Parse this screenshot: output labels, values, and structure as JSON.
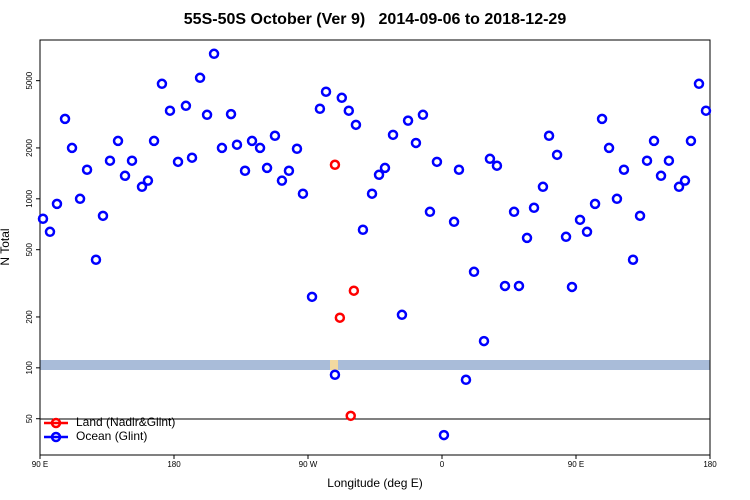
{
  "chart_data": {
    "type": "scatter",
    "title": "55S-50S October (Ver 9)   2014-09-06 to 2018-12-29",
    "xlabel": "Longitude (deg E)",
    "ylabel": "N Total",
    "xlim": [
      90,
      540
    ],
    "xticks": [
      {
        "value": 90,
        "label": "90 E"
      },
      {
        "value": 180,
        "label": "180"
      },
      {
        "value": 270,
        "label": "90 W"
      },
      {
        "value": 360,
        "label": "0"
      },
      {
        "value": 450,
        "label": "90 E"
      },
      {
        "value": 540,
        "label": "180"
      }
    ],
    "ylim": [
      30.5,
      8700
    ],
    "yticks": [
      50,
      100,
      200,
      500,
      1000,
      2000,
      5000
    ],
    "ylog": true,
    "legend": "lower left",
    "series": [
      {
        "name": "Land (Nadir&Glint)",
        "color": "#ff0000",
        "x": [
          288.1,
          291.4,
          300.8,
          298.7
        ],
        "values": [
          1590,
          198,
          286,
          52
        ]
      },
      {
        "name": "Ocean (Glint)",
        "color": "#0000ff",
        "x": [
          92,
          96.7,
          101.4,
          106.8,
          111.5,
          116.9,
          121.6,
          127.6,
          132.3,
          137,
          142.4,
          147.1,
          151.8,
          158.5,
          162.5,
          166.6,
          171.9,
          177.3,
          182.7,
          188,
          192.1,
          197.5,
          202.2,
          206.9,
          212.2,
          218.3,
          222.3,
          227.7,
          232.4,
          237.8,
          242.5,
          247.8,
          252.5,
          257.2,
          262.6,
          266.6,
          272.7,
          278,
          282.1,
          288.1,
          292.7,
          297.4,
          302.2,
          306.9,
          313,
          317.7,
          321.7,
          327.1,
          333.1,
          337.2,
          342.5,
          347.2,
          351.9,
          356.6,
          361.3,
          368.1,
          371.4,
          376.1,
          381.5,
          388.2,
          392.2,
          396.9,
          402.3,
          408.4,
          411.7,
          417.1,
          421.8,
          427.8,
          431.9,
          437.3,
          443.3,
          447.3,
          452.7,
          457.4,
          462.8,
          467.5,
          472.2,
          477.5,
          482.2,
          488.3,
          493,
          497.7,
          502.4,
          507.1,
          512.4,
          519.2,
          523.2,
          527.2,
          532.6,
          537.3
        ],
        "values": [
          762,
          638,
          933,
          2970,
          2000,
          1000,
          1486,
          436,
          793,
          1680,
          2200,
          1368,
          1680,
          1178,
          1280,
          2200,
          4790,
          3320,
          1655,
          3550,
          1750,
          5200,
          3140,
          7210,
          2000,
          3170,
          2090,
          1465,
          2200,
          2000,
          1523,
          2360,
          1280,
          1465,
          1977,
          1072,
          263,
          3410,
          4300,
          91,
          3960,
          3320,
          2740,
          656,
          1072,
          1387,
          1523,
          2390,
          206,
          2900,
          2140,
          3140,
          838,
          1655,
          40,
          731,
          1486,
          85,
          370,
          144,
          1725,
          1570,
          305,
          838,
          305,
          587,
          885,
          1178,
          2360,
          1820,
          596,
          301,
          751,
          638,
          933,
          2970,
          2000,
          1000,
          1486,
          436,
          793,
          1680,
          2200,
          1368,
          1680,
          1178,
          1280,
          2200,
          4790,
          3320
        ]
      }
    ]
  }
}
